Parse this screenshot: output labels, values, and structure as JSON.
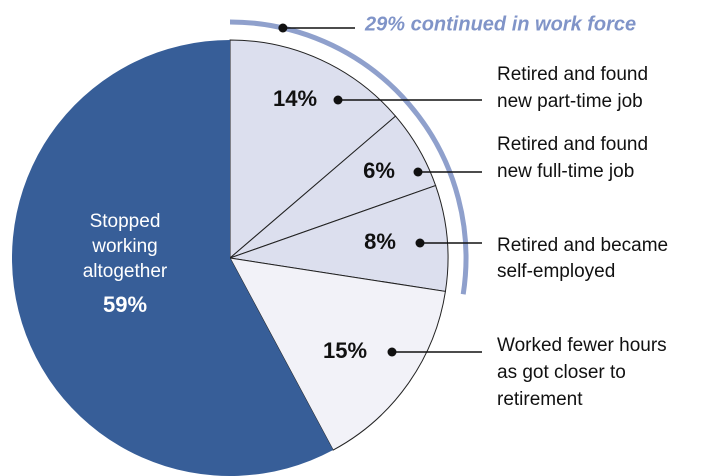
{
  "chart_data": {
    "type": "pie",
    "annotation": "29% continued in work force",
    "categories": [
      [
        "Retired and found",
        "new part-time job"
      ],
      [
        "Retired and found",
        "new full-time job"
      ],
      [
        "Retired and became",
        "self-employed"
      ],
      [
        "Worked fewer hours",
        "as got closer to",
        "retirement"
      ],
      [
        "Stopped",
        "working",
        "altogether"
      ]
    ],
    "values": [
      14,
      6,
      8,
      15,
      59
    ],
    "value_labels": [
      "14%",
      "6%",
      "8%",
      "15%",
      "59%"
    ],
    "colors": [
      "#dcdfee",
      "#dcdfee",
      "#dcdfee",
      "#f2f2f8",
      "#375e98"
    ]
  }
}
